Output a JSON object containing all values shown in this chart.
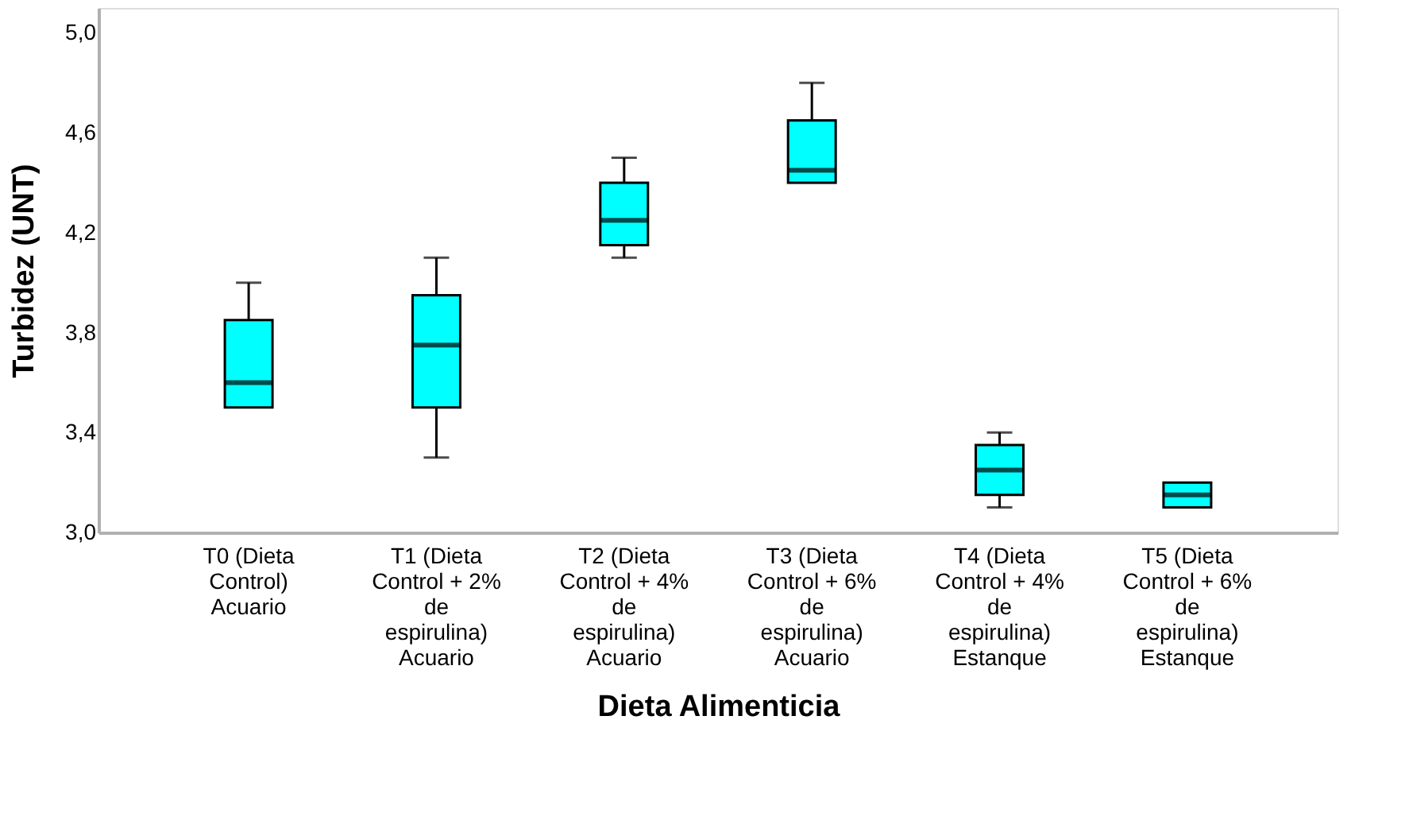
{
  "chart_data": {
    "type": "box",
    "xlabel": "Dieta Alimenticia",
    "ylabel": "Turbidez (UNT)",
    "categories": [
      "T0 (Dieta Control) Acuario",
      "T1 (Dieta Control + 2% de espirulina) Acuario",
      "T2 (Dieta Control + 4% de espirulina) Acuario",
      "T3 (Dieta Control + 6% de espirulina) Acuario",
      "T4 (Dieta Control + 4% de espirulina) Estanque",
      "T5 (Dieta Control + 6% de espirulina) Estanque"
    ],
    "boxes": [
      {
        "low": 3.5,
        "q1": 3.5,
        "median": 3.6,
        "q3": 3.85,
        "high": 4.0
      },
      {
        "low": 3.3,
        "q1": 3.5,
        "median": 3.75,
        "q3": 3.95,
        "high": 4.1
      },
      {
        "low": 4.1,
        "q1": 4.15,
        "median": 4.25,
        "q3": 4.4,
        "high": 4.5
      },
      {
        "low": 4.4,
        "q1": 4.4,
        "median": 4.45,
        "q3": 4.65,
        "high": 4.8
      },
      {
        "low": 3.1,
        "q1": 3.15,
        "median": 3.25,
        "q3": 3.35,
        "high": 3.4
      },
      {
        "low": 3.1,
        "q1": 3.1,
        "median": 3.15,
        "q3": 3.2,
        "high": 3.2
      }
    ],
    "color": "#00ffff",
    "ylim": [
      3.0,
      5.1
    ],
    "yticks": [
      {
        "value": 3.0,
        "label": "3,0"
      },
      {
        "value": 3.4,
        "label": "3,4"
      },
      {
        "value": 3.8,
        "label": "3,8"
      },
      {
        "value": 4.2,
        "label": "4,2"
      },
      {
        "value": 4.6,
        "label": "4,6"
      },
      {
        "value": 5.0,
        "label": "5,0"
      }
    ],
    "grid": false
  }
}
